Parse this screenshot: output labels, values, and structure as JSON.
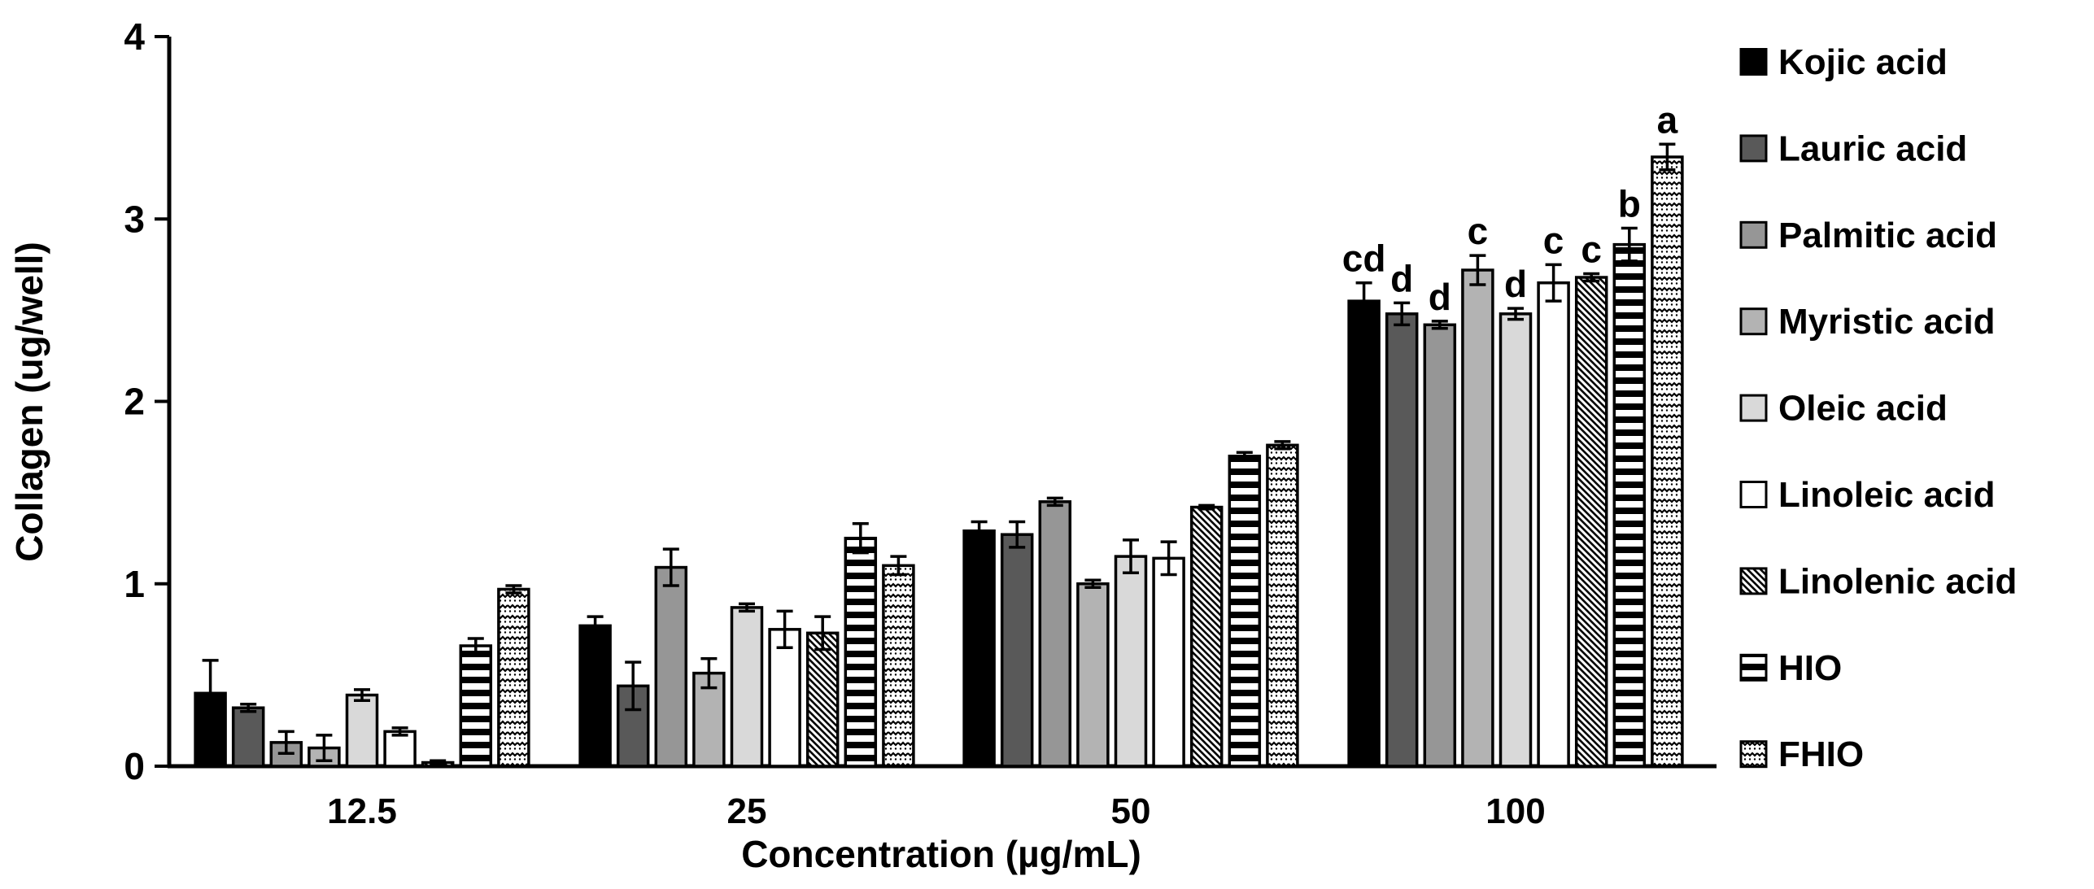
{
  "chart_data": {
    "type": "bar",
    "title": "",
    "xlabel": "Concentration (µg/mL)",
    "ylabel": "Collagen (ug/well)",
    "ylim": [
      0,
      4
    ],
    "yticks": [
      "0",
      "1",
      "2",
      "3",
      "4"
    ],
    "categories": [
      "12.5",
      "25",
      "50",
      "100"
    ],
    "grid": false,
    "legend_position": "right",
    "bar_outline_color": "#000000",
    "series": [
      {
        "name": "Kojic acid",
        "fill": "#000000",
        "values": [
          0.4,
          0.77,
          1.29,
          2.55
        ],
        "errors": [
          0.18,
          0.05,
          0.05,
          0.1
        ]
      },
      {
        "name": "Lauric acid",
        "fill": "#595959",
        "values": [
          0.32,
          0.44,
          1.27,
          2.48
        ],
        "errors": [
          0.02,
          0.13,
          0.07,
          0.06
        ]
      },
      {
        "name": "Palmitic acid",
        "fill": "#969696",
        "values": [
          0.13,
          1.09,
          1.45,
          2.42
        ],
        "errors": [
          0.06,
          0.1,
          0.02,
          0.02
        ]
      },
      {
        "name": "Myristic acid",
        "fill": "#b3b3b3",
        "values": [
          0.1,
          0.51,
          1.0,
          2.72
        ],
        "errors": [
          0.07,
          0.08,
          0.02,
          0.08
        ]
      },
      {
        "name": "Oleic acid",
        "fill": "#d9d9d9",
        "values": [
          0.39,
          0.87,
          1.15,
          2.48
        ],
        "errors": [
          0.03,
          0.02,
          0.09,
          0.03
        ]
      },
      {
        "name": "Linoleic acid",
        "fill": "#ffffff",
        "values": [
          0.19,
          0.75,
          1.14,
          2.65
        ],
        "errors": [
          0.02,
          0.1,
          0.09,
          0.1
        ]
      },
      {
        "name": "Linolenic acid",
        "fill": "pattern:diagonal-hatch",
        "values": [
          0.02,
          0.73,
          1.42,
          2.68
        ],
        "errors": [
          0.01,
          0.09,
          0.01,
          0.02
        ]
      },
      {
        "name": "HIO",
        "fill": "pattern:horizontal-stripes",
        "values": [
          0.66,
          1.25,
          1.7,
          2.86
        ],
        "errors": [
          0.04,
          0.08,
          0.02,
          0.09
        ]
      },
      {
        "name": "FHIO",
        "fill": "pattern:wave-dots",
        "values": [
          0.97,
          1.1,
          1.76,
          3.34
        ],
        "errors": [
          0.02,
          0.05,
          0.02,
          0.07
        ]
      }
    ],
    "significance_letters": {
      "category": "100",
      "letters": [
        "cd",
        "d",
        "d",
        "c",
        "d",
        "c",
        "c",
        "b",
        "a"
      ]
    }
  }
}
